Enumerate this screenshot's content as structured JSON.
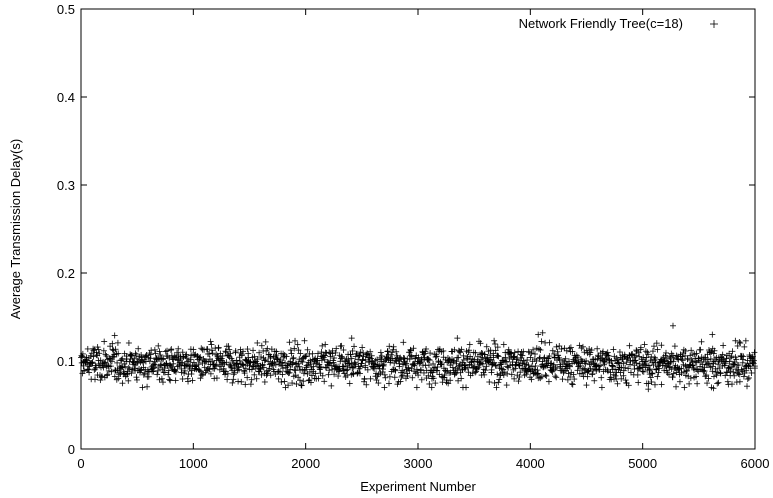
{
  "chart_data": {
    "type": "scatter",
    "title": "",
    "xlabel": "Experiment Number",
    "ylabel": "Average Transmission Delay(s)",
    "xlim": [
      0,
      6000
    ],
    "ylim": [
      0,
      0.5
    ],
    "x_ticks": [
      "0",
      "1000",
      "2000",
      "3000",
      "4000",
      "5000",
      "6000"
    ],
    "y_ticks": [
      "0",
      "0.1",
      "0.2",
      "0.3",
      "0.4",
      "0.5"
    ],
    "legend_position": "top-right",
    "grid": false,
    "marker": "+",
    "series": [
      {
        "name": "Network Friendly Tree(c=18)",
        "color": "#000000",
        "points_summary": "about 6000 experiments, x = 0..6000, delay scattered around 0.097 s",
        "x": [
          0,
          6000
        ],
        "y_mean": 0.097,
        "y_typical_range": [
          0.075,
          0.12
        ],
        "outliers": [
          {
            "x": 300,
            "y": 0.129
          },
          {
            "x": 2410,
            "y": 0.126
          },
          {
            "x": 3350,
            "y": 0.126
          },
          {
            "x": 4070,
            "y": 0.13
          },
          {
            "x": 4110,
            "y": 0.132
          },
          {
            "x": 5270,
            "y": 0.14
          },
          {
            "x": 5620,
            "y": 0.13
          },
          {
            "x": 5050,
            "y": 0.068
          },
          {
            "x": 5630,
            "y": 0.069
          }
        ]
      }
    ]
  }
}
